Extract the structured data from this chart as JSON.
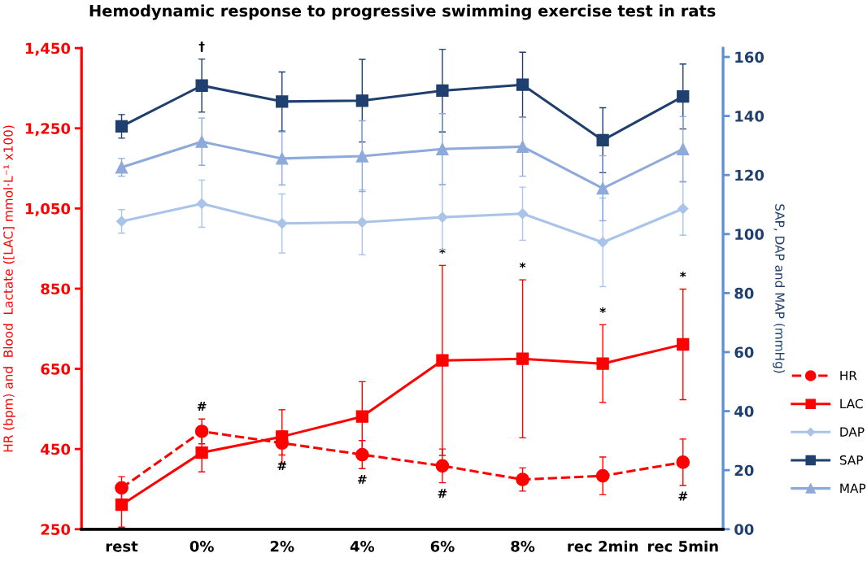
{
  "chart_data": {
    "type": "line",
    "title": "Hemodynamic response to progressive swimming exercise test in rats",
    "categories": [
      "rest",
      "0%",
      "2%",
      "4%",
      "6%",
      "8%",
      "rec 2min",
      "rec 5min"
    ],
    "ylabel": "HR (bpm) and  Blood  Lactate ([LAC] mmol·L⁻¹ x100)",
    "y2label": "SAP, DAP and MAP (mmHg)",
    "ylim": [
      250,
      1450
    ],
    "yticks": [
      {
        "value": 250,
        "label": "250"
      },
      {
        "value": 450,
        "label": "450"
      },
      {
        "value": 650,
        "label": "650"
      },
      {
        "value": 850,
        "label": "850"
      },
      {
        "value": 1050,
        "label": "1,050"
      },
      {
        "value": 1250,
        "label": "1,250"
      },
      {
        "value": 1450,
        "label": "1,450"
      }
    ],
    "y2lim": [
      0,
      163
    ],
    "y2ticks": [
      {
        "value": 0,
        "label": "00"
      },
      20,
      40,
      60,
      80,
      100,
      120,
      140,
      160
    ],
    "grid": false,
    "legend": "right",
    "series": [
      {
        "name": "HR",
        "color": "#ff0000",
        "marker": "circle",
        "line_style": "dashed",
        "values": [
          353,
          494,
          465,
          436,
          408,
          374,
          383,
          417
        ],
        "errors": [
          28,
          31,
          30,
          35,
          42,
          29,
          47,
          58
        ]
      },
      {
        "name": "LAC",
        "color": "#ff0000",
        "marker": "square",
        "line_style": "solid",
        "values": [
          311,
          441,
          481,
          531,
          671,
          675,
          663,
          711
        ],
        "errors": [
          56,
          48,
          67,
          87,
          237,
          197,
          97,
          138
        ]
      },
      {
        "name": "DAP",
        "color": "#a9c4e8",
        "marker": "diamond",
        "line_style": "solid",
        "axis": "y2",
        "values": [
          104.3,
          110.3,
          103.6,
          104,
          105.7,
          106.9,
          97.2,
          108.6
        ],
        "errors": [
          4,
          8,
          10,
          11,
          11,
          9,
          15,
          9
        ]
      },
      {
        "name": "SAP",
        "color": "#1f3f6e",
        "marker": "square",
        "line_style": "solid",
        "axis": "y2",
        "values": [
          136.5,
          150.3,
          144.9,
          145.2,
          148.6,
          150.6,
          131.8,
          146.6
        ],
        "errors": [
          4,
          9,
          10,
          14,
          14,
          11,
          11,
          11
        ]
      },
      {
        "name": "MAP",
        "color": "#8eaadb",
        "marker": "triangle",
        "line_style": "solid",
        "axis": "y2",
        "values": [
          122.6,
          131.3,
          125.6,
          126.4,
          128.8,
          129.6,
          115.5,
          128.8
        ],
        "errors": [
          3,
          8,
          9,
          12,
          12,
          10,
          11,
          11
        ]
      }
    ],
    "annotations": [
      {
        "text": "†",
        "x": "0%",
        "y": 1423
      },
      {
        "text": "#",
        "x": "0%",
        "y": 525
      },
      {
        "text": "#",
        "x": "2%",
        "y": 435
      },
      {
        "text": "#",
        "x": "4%",
        "y": 401
      },
      {
        "text": "#",
        "x": "6%",
        "y": 366
      },
      {
        "text": "#",
        "x": "rec 5min",
        "y": 359
      },
      {
        "text": "*",
        "x": "6%",
        "y": 908
      },
      {
        "text": "*",
        "x": "8%",
        "y": 872
      },
      {
        "text": "*",
        "x": "rec 2min",
        "y": 760
      },
      {
        "text": "*",
        "x": "rec 5min",
        "y": 849
      }
    ]
  }
}
